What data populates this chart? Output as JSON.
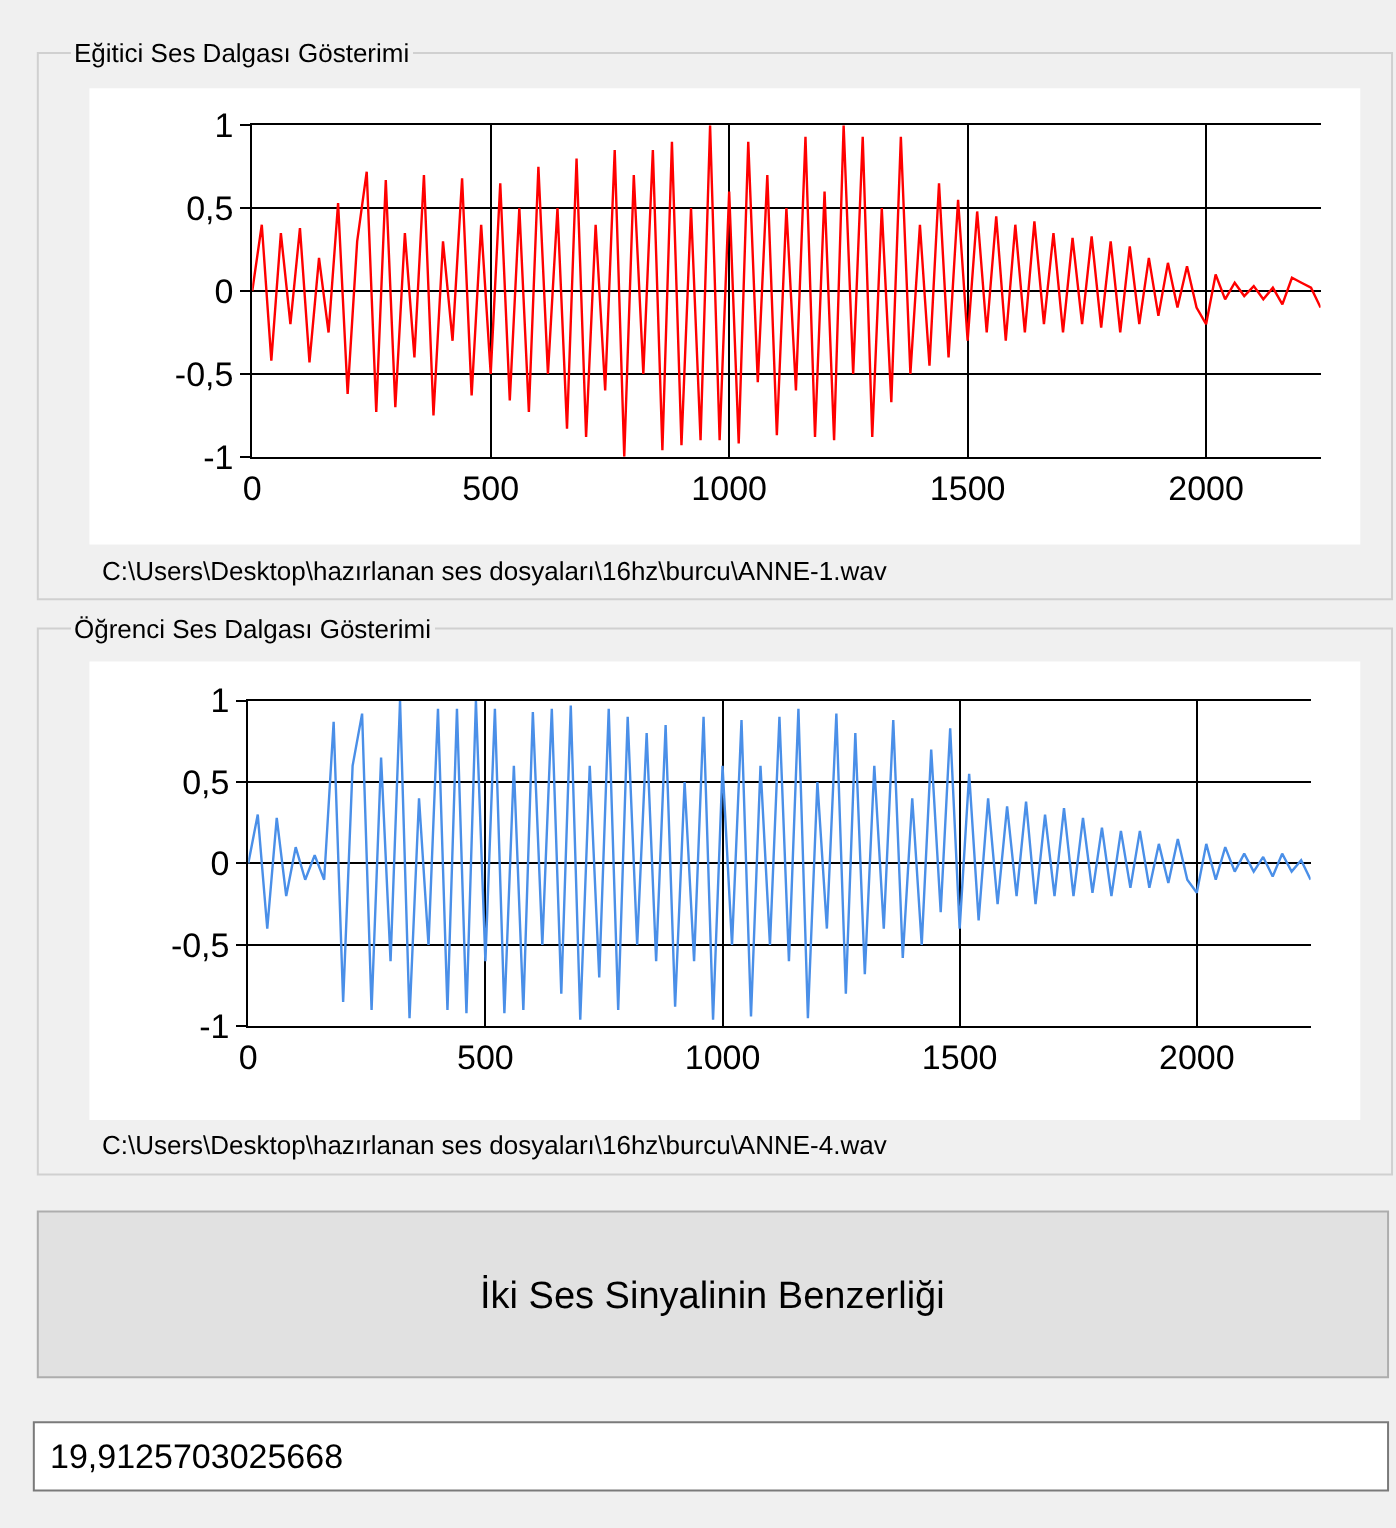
{
  "chart_data": [
    {
      "type": "line",
      "title": "Eğitici Ses Dalgası Gösterimi",
      "annotations": [
        "C:\\Users\\Desktop\\hazırlanan ses dosyaları\\16hz\\burcu\\ANNE-1.wav"
      ],
      "x": [
        0,
        20,
        40,
        60,
        80,
        100,
        120,
        140,
        160,
        180,
        200,
        220,
        240,
        260,
        280,
        300,
        320,
        340,
        360,
        380,
        400,
        420,
        440,
        460,
        480,
        500,
        520,
        540,
        560,
        580,
        600,
        620,
        640,
        660,
        680,
        700,
        720,
        740,
        760,
        780,
        800,
        820,
        840,
        860,
        880,
        900,
        920,
        940,
        960,
        980,
        1000,
        1020,
        1040,
        1060,
        1080,
        1100,
        1120,
        1140,
        1160,
        1180,
        1200,
        1220,
        1240,
        1260,
        1280,
        1300,
        1320,
        1340,
        1360,
        1380,
        1400,
        1420,
        1440,
        1460,
        1480,
        1500,
        1520,
        1540,
        1560,
        1580,
        1600,
        1620,
        1640,
        1660,
        1680,
        1700,
        1720,
        1740,
        1760,
        1780,
        1800,
        1820,
        1840,
        1860,
        1880,
        1900,
        1920,
        1940,
        1960,
        1980,
        2000,
        2020,
        2040,
        2060,
        2080,
        2100,
        2120,
        2140,
        2160,
        2180,
        2200,
        2220,
        2240
      ],
      "series": [
        {
          "color": "#ff0000",
          "values": [
            0,
            0.4,
            -0.42,
            0.35,
            -0.2,
            0.38,
            -0.43,
            0.2,
            -0.25,
            0.53,
            -0.62,
            0.3,
            0.72,
            -0.73,
            0.67,
            -0.7,
            0.35,
            -0.4,
            0.7,
            -0.75,
            0.3,
            -0.3,
            0.68,
            -0.63,
            0.4,
            -0.5,
            0.65,
            -0.66,
            0.5,
            -0.73,
            0.75,
            -0.5,
            0.5,
            -0.83,
            0.8,
            -0.88,
            0.4,
            -0.6,
            0.85,
            -1,
            0.7,
            -0.5,
            0.85,
            -0.96,
            0.9,
            -0.93,
            0.5,
            -0.9,
            1,
            -0.9,
            0.6,
            -0.92,
            0.9,
            -0.55,
            0.7,
            -0.87,
            0.5,
            -0.6,
            0.93,
            -0.88,
            0.6,
            -0.9,
            1,
            -0.5,
            0.93,
            -0.88,
            0.5,
            -0.67,
            0.93,
            -0.5,
            0.4,
            -0.45,
            0.65,
            -0.4,
            0.55,
            -0.3,
            0.48,
            -0.25,
            0.45,
            -0.3,
            0.4,
            -0.25,
            0.42,
            -0.2,
            0.35,
            -0.25,
            0.32,
            -0.2,
            0.33,
            -0.22,
            0.3,
            -0.25,
            0.27,
            -0.2,
            0.2,
            -0.15,
            0.17,
            -0.1,
            0.15,
            -0.1,
            -0.2,
            0.1,
            -0.05,
            0.05,
            -0.03,
            0.03,
            -0.05,
            0.02,
            -0.08,
            0.08,
            0.05,
            0.02,
            -0.1
          ]
        }
      ],
      "xlim": [
        0,
        2240
      ],
      "xticks": [
        0,
        500,
        1000,
        1500,
        2000
      ],
      "ylim": [
        -1,
        1
      ],
      "yticks": [
        {
          "value": -1,
          "label": "-1"
        },
        {
          "value": -0.5,
          "label": "-0,5"
        },
        0,
        {
          "value": 0.5,
          "label": "0,5"
        },
        1
      ],
      "grid": true
    },
    {
      "type": "line",
      "title": "Öğrenci Ses Dalgası Gösterimi",
      "annotations": [
        "C:\\Users\\Desktop\\hazırlanan ses dosyaları\\16hz\\burcu\\ANNE-4.wav",
        "İki Ses Sinyalinin Benzerliği",
        "19,9125703025668"
      ],
      "x": [
        0,
        20,
        40,
        60,
        80,
        100,
        120,
        140,
        160,
        180,
        200,
        220,
        240,
        260,
        280,
        300,
        320,
        340,
        360,
        380,
        400,
        420,
        440,
        460,
        480,
        500,
        520,
        540,
        560,
        580,
        600,
        620,
        640,
        660,
        680,
        700,
        720,
        740,
        760,
        780,
        800,
        820,
        840,
        860,
        880,
        900,
        920,
        940,
        960,
        980,
        1000,
        1020,
        1040,
        1060,
        1080,
        1100,
        1120,
        1140,
        1160,
        1180,
        1200,
        1220,
        1240,
        1260,
        1280,
        1300,
        1320,
        1340,
        1360,
        1380,
        1400,
        1420,
        1440,
        1460,
        1480,
        1500,
        1520,
        1540,
        1560,
        1580,
        1600,
        1620,
        1640,
        1660,
        1680,
        1700,
        1720,
        1740,
        1760,
        1780,
        1800,
        1820,
        1840,
        1860,
        1880,
        1900,
        1920,
        1940,
        1960,
        1980,
        2000,
        2020,
        2040,
        2060,
        2080,
        2100,
        2120,
        2140,
        2160,
        2180,
        2200,
        2220,
        2240
      ],
      "series": [
        {
          "color": "#4a8fe8",
          "values": [
            0,
            0.3,
            -0.4,
            0.28,
            -0.2,
            0.1,
            -0.1,
            0.05,
            -0.1,
            0.87,
            -0.85,
            0.6,
            0.92,
            -0.9,
            0.65,
            -0.6,
            1,
            -0.95,
            0.4,
            -0.5,
            0.95,
            -0.9,
            0.95,
            -0.92,
            1,
            -0.6,
            0.95,
            -0.92,
            0.6,
            -0.9,
            0.93,
            -0.5,
            0.95,
            -0.8,
            0.97,
            -0.96,
            0.6,
            -0.7,
            0.95,
            -0.9,
            0.9,
            -0.5,
            0.8,
            -0.6,
            0.85,
            -0.88,
            0.5,
            -0.6,
            0.9,
            -0.96,
            0.6,
            -0.5,
            0.88,
            -0.94,
            0.6,
            -0.5,
            0.9,
            -0.6,
            0.95,
            -0.95,
            0.5,
            -0.4,
            0.92,
            -0.8,
            0.8,
            -0.68,
            0.6,
            -0.4,
            0.88,
            -0.58,
            0.4,
            -0.5,
            0.7,
            -0.3,
            0.83,
            -0.4,
            0.55,
            -0.35,
            0.4,
            -0.25,
            0.35,
            -0.2,
            0.38,
            -0.25,
            0.3,
            -0.2,
            0.34,
            -0.2,
            0.28,
            -0.18,
            0.22,
            -0.2,
            0.2,
            -0.15,
            0.2,
            -0.15,
            0.12,
            -0.12,
            0.15,
            -0.1,
            -0.18,
            0.12,
            -0.1,
            0.1,
            -0.05,
            0.06,
            -0.05,
            0.04,
            -0.08,
            0.06,
            -0.05,
            0.02,
            -0.1
          ]
        }
      ],
      "xlim": [
        0,
        2240
      ],
      "xticks": [
        0,
        500,
        1000,
        1500,
        2000
      ],
      "ylim": [
        -1,
        1
      ],
      "yticks": [
        {
          "value": -1,
          "label": "-1"
        },
        {
          "value": -0.5,
          "label": "-0,5"
        },
        0,
        {
          "value": 0.5,
          "label": "0,5"
        },
        1
      ],
      "grid": true
    }
  ]
}
